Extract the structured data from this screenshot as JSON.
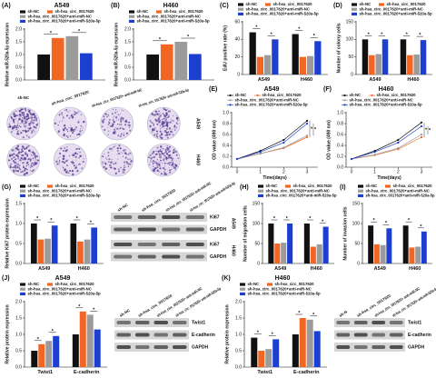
{
  "chart_data": [
    {
      "type": "bar",
      "label": "(A)",
      "title": "A549",
      "ylabel": "Relative miR-520a-5p expression",
      "series": [
        {
          "name": "sh-NC",
          "color": "#111111",
          "values": [
            1.0
          ]
        },
        {
          "name": "sh-hsa_circ_0017620",
          "color": "#f26522",
          "values": [
            1.65
          ]
        },
        {
          "name": "sh-hsa_circ_0017620+anti-miR-NC",
          "color": "#9b9b9b",
          "values": [
            1.72
          ]
        },
        {
          "name": "sh-hsa_circ_0017620+anti-miR-520a-5p",
          "color": "#1c3fd0",
          "values": [
            1.05
          ]
        }
      ],
      "ylim": [
        0,
        2
      ],
      "yticks": [
        {
          "value": 0,
          "label": "0.0"
        },
        0.5,
        {
          "value": 1,
          "label": "1.0"
        },
        1.5,
        {
          "value": 2,
          "label": "2.0"
        }
      ],
      "annotations": [
        "*",
        "*"
      ]
    },
    {
      "type": "bar",
      "label": "(B)",
      "title": "H460",
      "ylabel": "Relative miR-520a-5p expression",
      "series": [
        {
          "name": "sh-NC",
          "color": "#111111",
          "values": [
            1.0
          ]
        },
        {
          "name": "sh-hsa_circ_0017620",
          "color": "#f26522",
          "values": [
            1.4
          ]
        },
        {
          "name": "sh-hsa_circ_0017620+anti-miR-NC",
          "color": "#9b9b9b",
          "values": [
            1.5
          ]
        },
        {
          "name": "sh-hsa_circ_0017620+anti-miR-520a-5p",
          "color": "#1c3fd0",
          "values": [
            1.02
          ]
        }
      ],
      "ylim": [
        0,
        2
      ],
      "yticks": [
        {
          "value": 0,
          "label": "0.0"
        },
        0.5,
        {
          "value": 1,
          "label": "1.0"
        },
        1.5,
        {
          "value": 2,
          "label": "2.0"
        }
      ],
      "annotations": [
        "*",
        "*"
      ]
    },
    {
      "type": "bar",
      "label": "(C)",
      "ylabel": "EdU positive rate (%)",
      "categories": [
        "A549",
        "H460"
      ],
      "series": [
        {
          "name": "sh-NC",
          "color": "#111111",
          "values": [
            48,
            46
          ]
        },
        {
          "name": "sh-hsa_circ_0017620",
          "color": "#f26522",
          "values": [
            20,
            20
          ]
        },
        {
          "name": "sh-hsa_circ_0017620+anti-miR-NC",
          "color": "#9b9b9b",
          "values": [
            22,
            21
          ]
        },
        {
          "name": "sh-hsa_circ_0017620+anti-miR-520a-5p",
          "color": "#1c3fd0",
          "values": [
            40,
            38
          ]
        }
      ],
      "ylim": [
        0,
        60
      ],
      "yticks": [
        0,
        20,
        40,
        60
      ],
      "annotations": [
        "*",
        "*",
        "*",
        "*"
      ]
    },
    {
      "type": "bar",
      "label": "(D)",
      "ylabel": "Number of colony cells",
      "categories": [
        "A549",
        "H460"
      ],
      "series": [
        {
          "name": "sh-NC",
          "color": "#111111",
          "values": [
            100,
            100
          ]
        },
        {
          "name": "sh-hsa_circ_0017620",
          "color": "#f26522",
          "values": [
            55,
            55
          ]
        },
        {
          "name": "sh-hsa_circ_0017620+anti-miR-NC",
          "color": "#9b9b9b",
          "values": [
            58,
            57
          ]
        },
        {
          "name": "sh-hsa_circ_0017620+anti-miR-520a-5p",
          "color": "#1c3fd0",
          "values": [
            100,
            98
          ]
        }
      ],
      "ylim": [
        0,
        150
      ],
      "yticks": [
        0,
        50,
        100,
        150
      ],
      "annotations": [
        "*",
        "*",
        "*",
        "*"
      ]
    },
    {
      "type": "line",
      "label": "(E)",
      "title": "A549",
      "ylabel": "OD value (490 nm)",
      "xlabel": "Time(days)",
      "x": [
        0,
        1,
        2,
        3
      ],
      "xlim": [
        0,
        3
      ],
      "xticks": [
        0,
        1,
        2,
        3
      ],
      "series": [
        {
          "name": "sh-NC",
          "color": "#111111",
          "values": [
            0.15,
            0.3,
            0.5,
            0.85
          ]
        },
        {
          "name": "sh-hsa_circ_0017620",
          "color": "#f26522",
          "values": [
            0.15,
            0.25,
            0.35,
            0.55
          ]
        },
        {
          "name": "sh-hsa_circ_0017620+anti-miR-NC",
          "color": "#9b9b9b",
          "values": [
            0.15,
            0.25,
            0.36,
            0.58
          ]
        },
        {
          "name": "sh-hsa_circ_0017620+anti-miR-520a-5p",
          "color": "#1c3fd0",
          "values": [
            0.15,
            0.28,
            0.45,
            0.8
          ]
        }
      ],
      "ylim": [
        0,
        1
      ],
      "yticks": [
        {
          "value": 0,
          "label": "0.0"
        },
        0.2,
        0.4,
        0.6,
        0.8,
        {
          "value": 1,
          "label": "1.0"
        }
      ],
      "annotations": [
        "*",
        "*"
      ]
    },
    {
      "type": "line",
      "label": "(F)",
      "title": "H460",
      "ylabel": "OD value (490 nm)",
      "xlabel": "Time(days)",
      "x": [
        0,
        1,
        2,
        3
      ],
      "xlim": [
        0,
        3
      ],
      "xticks": [
        0,
        1,
        2,
        3
      ],
      "series": [
        {
          "name": "sh-NC",
          "color": "#111111",
          "values": [
            0.15,
            0.3,
            0.5,
            0.82
          ]
        },
        {
          "name": "sh-hsa_circ_0017620",
          "color": "#f26522",
          "values": [
            0.15,
            0.22,
            0.33,
            0.55
          ]
        },
        {
          "name": "sh-hsa_circ_0017620+anti-miR-NC",
          "color": "#9b9b9b",
          "values": [
            0.15,
            0.23,
            0.35,
            0.6
          ]
        },
        {
          "name": "sh-hsa_circ_0017620+anti-miR-520a-5p",
          "color": "#1c3fd0",
          "values": [
            0.15,
            0.28,
            0.45,
            0.75
          ]
        }
      ],
      "ylim": [
        0,
        1
      ],
      "yticks": [
        {
          "value": 0,
          "label": "0.0"
        },
        0.2,
        0.4,
        0.6,
        0.8,
        {
          "value": 1,
          "label": "1.0"
        }
      ],
      "annotations": [
        "*",
        "*"
      ]
    },
    {
      "type": "bar",
      "label": "(G)",
      "ylabel": "Relative Ki67 protein expression",
      "categories": [
        "A549",
        "H460"
      ],
      "series": [
        {
          "name": "sh-NC",
          "color": "#111111",
          "values": [
            1.0,
            1.0
          ]
        },
        {
          "name": "sh-hsa_circ_0017620",
          "color": "#f26522",
          "values": [
            0.6,
            0.55
          ]
        },
        {
          "name": "sh-hsa_circ_0017620+anti-miR-NC",
          "color": "#9b9b9b",
          "values": [
            0.62,
            0.6
          ]
        },
        {
          "name": "sh-hsa_circ_0017620+anti-miR-520a-5p",
          "color": "#1c3fd0",
          "values": [
            0.95,
            0.9
          ]
        }
      ],
      "ylim": [
        0,
        1.5
      ],
      "yticks": [
        {
          "value": 0,
          "label": "0.0"
        },
        0.5,
        {
          "value": 1,
          "label": "1.0"
        },
        1.5
      ],
      "annotations": [
        "*",
        "*",
        "*",
        "*"
      ]
    },
    {
      "type": "bar",
      "label": "(H)",
      "ylabel": "Number of migration cells",
      "categories": [
        "A549",
        "H460"
      ],
      "series": [
        {
          "name": "sh-NC",
          "color": "#111111",
          "values": [
            100,
            100
          ]
        },
        {
          "name": "sh-hsa_circ_0017620",
          "color": "#f26522",
          "values": [
            50,
            42
          ]
        },
        {
          "name": "sh-hsa_circ_0017620+anti-miR-NC",
          "color": "#9b9b9b",
          "values": [
            52,
            48
          ]
        },
        {
          "name": "sh-hsa_circ_0017620+anti-miR-520a-5p",
          "color": "#1c3fd0",
          "values": [
            100,
            92
          ]
        }
      ],
      "ylim": [
        0,
        150
      ],
      "yticks": [
        0,
        50,
        100,
        150
      ],
      "annotations": [
        "*",
        "*",
        "*",
        "*"
      ]
    },
    {
      "type": "bar",
      "label": "(I)",
      "ylabel": "Number of invasion cells",
      "categories": [
        "A549",
        "H460"
      ],
      "series": [
        {
          "name": "sh-NC",
          "color": "#111111",
          "values": [
            95,
            95
          ]
        },
        {
          "name": "sh-hsa_circ_0017620",
          "color": "#f26522",
          "values": [
            48,
            40
          ]
        },
        {
          "name": "sh-hsa_circ_0017620+anti-miR-NC",
          "color": "#9b9b9b",
          "values": [
            46,
            42
          ]
        },
        {
          "name": "sh-hsa_circ_0017620+anti-miR-520a-5p",
          "color": "#1c3fd0",
          "values": [
            88,
            80
          ]
        }
      ],
      "ylim": [
        0,
        150
      ],
      "yticks": [
        0,
        50,
        100,
        150
      ],
      "annotations": [
        "*",
        "*",
        "*",
        "*"
      ]
    },
    {
      "type": "bar",
      "label": "(J)",
      "title": "A549",
      "ylabel": "Relative protein expression",
      "categories": [
        "Twist1",
        "E-cadherin"
      ],
      "series": [
        {
          "name": "sh-NC",
          "color": "#111111",
          "values": [
            0.5,
            1.0
          ]
        },
        {
          "name": "sh-hsa_circ_0017620",
          "color": "#f26522",
          "values": [
            0.7,
            1.7
          ]
        },
        {
          "name": "sh-hsa_circ_0017620+anti-miR-NC",
          "color": "#9b9b9b",
          "values": [
            0.8,
            1.6
          ]
        },
        {
          "name": "sh-hsa_circ_0017620+anti-miR-520a-5p",
          "color": "#1c3fd0",
          "values": [
            0.95,
            1.15
          ]
        }
      ],
      "ylim": [
        0,
        2
      ],
      "yticks": [
        {
          "value": 0,
          "label": "0.0"
        },
        0.5,
        {
          "value": 1,
          "label": "1.0"
        },
        1.5,
        {
          "value": 2,
          "label": "2.0"
        }
      ],
      "annotations": [
        "*",
        "*",
        "*",
        "*"
      ]
    },
    {
      "type": "bar",
      "label": "(K)",
      "title": "H460",
      "ylabel": "Relative protein expression",
      "categories": [
        "Twist1",
        "E-cadherin"
      ],
      "series": [
        {
          "name": "sh-NC",
          "color": "#111111",
          "values": [
            0.9,
            1.0
          ]
        },
        {
          "name": "sh-hsa_circ_0017620",
          "color": "#f26522",
          "values": [
            0.5,
            1.5
          ]
        },
        {
          "name": "sh-hsa_circ_0017620+anti-miR-NC",
          "color": "#9b9b9b",
          "values": [
            0.55,
            1.45
          ]
        },
        {
          "name": "sh-hsa_circ_0017620+anti-miR-520a-5p",
          "color": "#1c3fd0",
          "values": [
            0.85,
            1.1
          ]
        }
      ],
      "ylim": [
        0,
        2
      ],
      "yticks": [
        {
          "value": 0,
          "label": "0.0"
        },
        0.5,
        {
          "value": 1,
          "label": "1.0"
        },
        1.5,
        {
          "value": 2,
          "label": "2.0"
        }
      ],
      "annotations": [
        "*",
        "*",
        "*",
        "*"
      ]
    }
  ],
  "colony": {
    "columns": [
      "sh-NC",
      "sh-hsa_circ_0017620",
      "sh-hsa_circ_0017620+ anti-miR-NC",
      "sh-hsa_circ_0017620+ anti-miR-520a-5p"
    ],
    "rows": [
      "A549",
      "H460"
    ]
  },
  "blots": [
    {
      "lanes": [
        "sh-NC",
        "sh-hsa_circ_0017620",
        "sh-hsa_circ_0017620+ anti-miR-NC",
        "sh-hsa_circ_0017620+ anti-miR-520a-5p"
      ],
      "rows": [
        "Ki67",
        "GAPDH",
        "Ki67",
        "GAPDH"
      ],
      "groups": [
        "A549",
        "H460"
      ]
    },
    {
      "lanes": [
        "sh-NC",
        "sh-hsa_circ_0017620",
        "sh-hsa_circ_0017620+ anti-miR-NC",
        "sh-hsa_circ_0017620+ anti-miR-520a-5p"
      ],
      "rows": [
        "Twist1",
        "E-cadherin",
        "GAPDH"
      ]
    },
    {
      "lanes": [
        "sh-N",
        "sh-hsa_circ_0017620",
        "sh-hsa_circ_0017620+ anti-miR-NC",
        "sh-hsa_circ_0017620+ anti-miR-520a-5p"
      ],
      "rows": [
        "Twist1",
        "E-cadherin",
        "GAPDH"
      ]
    }
  ]
}
